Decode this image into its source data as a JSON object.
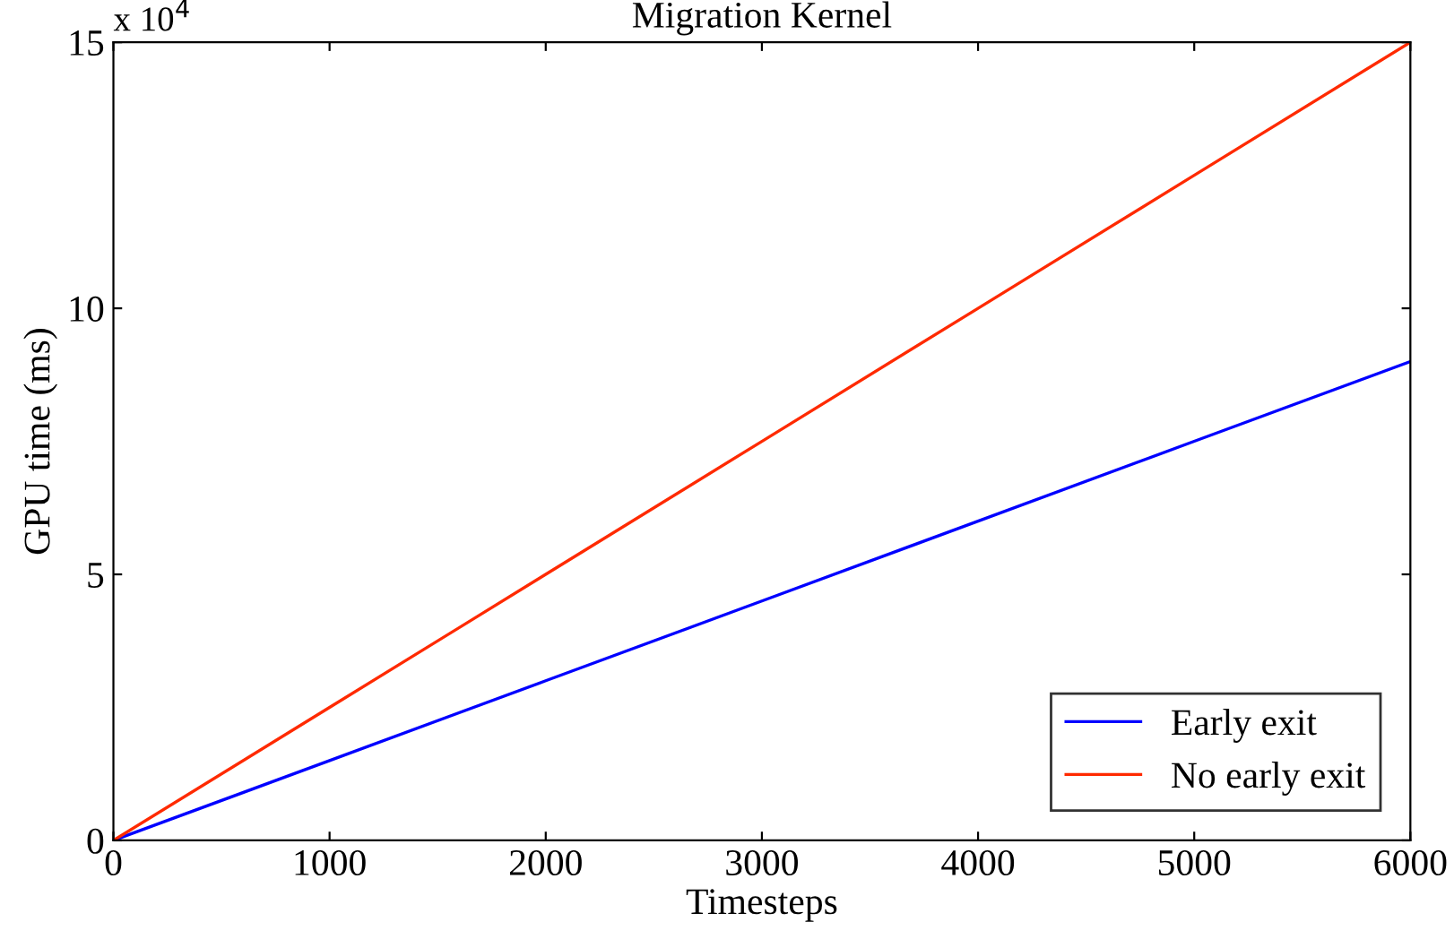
{
  "chart_data": {
    "type": "line",
    "title": "Migration Kernel",
    "xlabel": "Timesteps",
    "ylabel": "GPU time (ms)",
    "annotations": [
      "x 10$^{4}$"
    ],
    "x": [
      0,
      1000,
      2000,
      3000,
      4000,
      5000,
      6000
    ],
    "series": [
      {
        "name": "Early exit",
        "color": "#0000ff",
        "values": [
          0,
          1.5,
          3,
          4.5,
          6,
          7.5,
          9
        ]
      },
      {
        "name": "No early exit",
        "color": "#ff2a00",
        "values": [
          0,
          2.5,
          5,
          7.5,
          10,
          12.5,
          15
        ]
      }
    ],
    "xlim": [
      0,
      6000
    ],
    "xticks": [
      0,
      1000,
      2000,
      3000,
      4000,
      5000,
      6000
    ],
    "ylim": [
      0,
      15
    ],
    "yticks": [
      0,
      5,
      10,
      15
    ],
    "grid": false,
    "legend": "bottom right",
    "marker": "none",
    "line_style": "solid"
  }
}
